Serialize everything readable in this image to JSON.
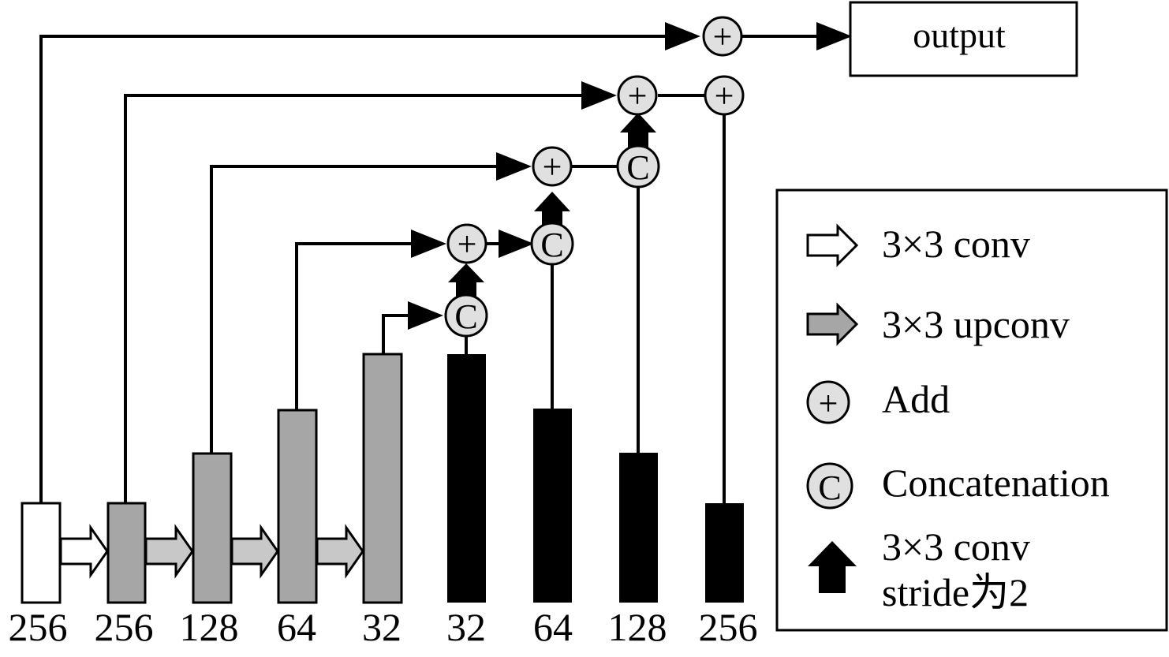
{
  "output_label": "output",
  "encoder_labels": [
    "256",
    "256",
    "128",
    "64",
    "32"
  ],
  "decoder_labels": [
    "32",
    "64",
    "128",
    "256"
  ],
  "node_symbols": {
    "add": "+",
    "concat": "C"
  },
  "legend": {
    "items": [
      {
        "icon": "white-arrow-icon",
        "label": "3×3 conv"
      },
      {
        "icon": "gray-arrow-icon",
        "label": "3×3 upconv"
      },
      {
        "icon": "add-circle-icon",
        "label": "Add"
      },
      {
        "icon": "concat-circle-icon",
        "label": "Concatenation"
      }
    ],
    "stride_item": {
      "icon": "black-up-arrow-icon",
      "line1": "3×3 conv",
      "line2": "stride为2"
    }
  },
  "colors": {
    "encoder_bar": "#a6a6a6",
    "first_bar": "#ffffff",
    "decoder_bar": "#000000",
    "node_fill": "#e0e0e0",
    "upconv_arrow": "#c8c8c8"
  }
}
